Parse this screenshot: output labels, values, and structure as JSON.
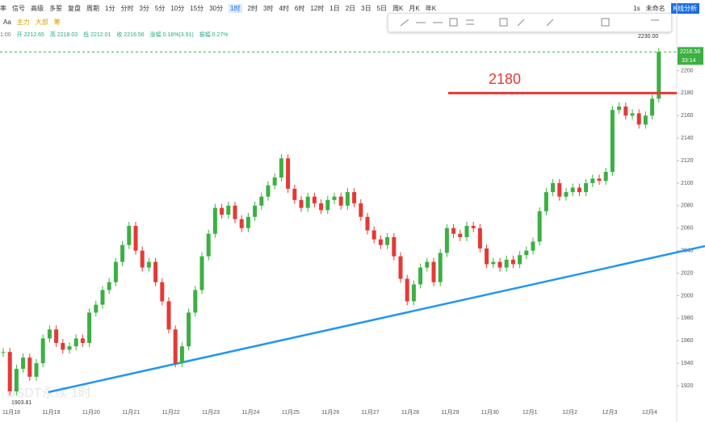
{
  "toolbar": {
    "left": [
      "率",
      "信号",
      "高级",
      "多誓",
      "复盘",
      "周期"
    ],
    "periods": [
      "1分",
      "分时",
      "3分",
      "5分",
      "10分",
      "15分",
      "30分",
      "1时",
      "2时",
      "3时",
      "4时",
      "6时",
      "12时",
      "1日",
      "2日",
      "3日",
      "5日",
      "周K",
      "月K",
      "年K"
    ],
    "right": [
      "1s",
      "未命名",
      "K线分析"
    ],
    "second": [
      "Aa",
      "主力",
      "大部",
      "筹"
    ]
  },
  "ohlc_row": [
    "1:00",
    "开 2212.65",
    "高 2218.03",
    "低 2212.01",
    "收 2216.56",
    "涨幅 0.18%(3.91)",
    "振幅 0.27%"
  ],
  "chart_data": {
    "type": "candlestick",
    "watermark": "USDT永续 1时",
    "x_labels": [
      "11月18",
      "11月19",
      "11月20",
      "11月21",
      "11月22",
      "11月23",
      "11月24",
      "11月25",
      "11月26",
      "11月27",
      "11月28",
      "11月29",
      "11月30",
      "12月1",
      "12月2",
      "12月3",
      "12月4"
    ],
    "closes": [
      1950,
      1915,
      1935,
      1945,
      1928,
      1940,
      1962,
      1970,
      1958,
      1952,
      1955,
      1962,
      1958,
      1985,
      1992,
      2005,
      2012,
      2030,
      2045,
      2062,
      2040,
      2025,
      2030,
      2012,
      1995,
      1970,
      1940,
      1955,
      1985,
      2005,
      2035,
      2055,
      2078,
      2072,
      2080,
      2068,
      2060,
      2070,
      2080,
      2088,
      2098,
      2105,
      2122,
      2095,
      2085,
      2078,
      2088,
      2082,
      2076,
      2085,
      2088,
      2080,
      2092,
      2082,
      2070,
      2058,
      2050,
      2045,
      2052,
      2035,
      2015,
      1995,
      2010,
      2025,
      2030,
      2012,
      2038,
      2060,
      2055,
      2052,
      2062,
      2060,
      2042,
      2028,
      2030,
      2025,
      2032,
      2028,
      2036,
      2040,
      2048,
      2075,
      2092,
      2100,
      2088,
      2092,
      2096,
      2092,
      2100,
      2104,
      2102,
      2110,
      2165,
      2168,
      2160,
      2162,
      2152,
      2160,
      2175,
      2216.56
    ],
    "up_color": "#3cb043",
    "down_color": "#e53935",
    "ylim": [
      1910,
      2234
    ],
    "yticks": [
      1920,
      1940,
      1960,
      1980,
      2000,
      2020,
      2040,
      2060,
      2080,
      2100,
      2120,
      2140,
      2160,
      2180,
      2200
    ],
    "current_price": 2216.56,
    "countdown": "33:14",
    "high_label": "2230.00",
    "low_label": "1903.81",
    "hline": 2180,
    "hline_color": "#e53935"
  }
}
